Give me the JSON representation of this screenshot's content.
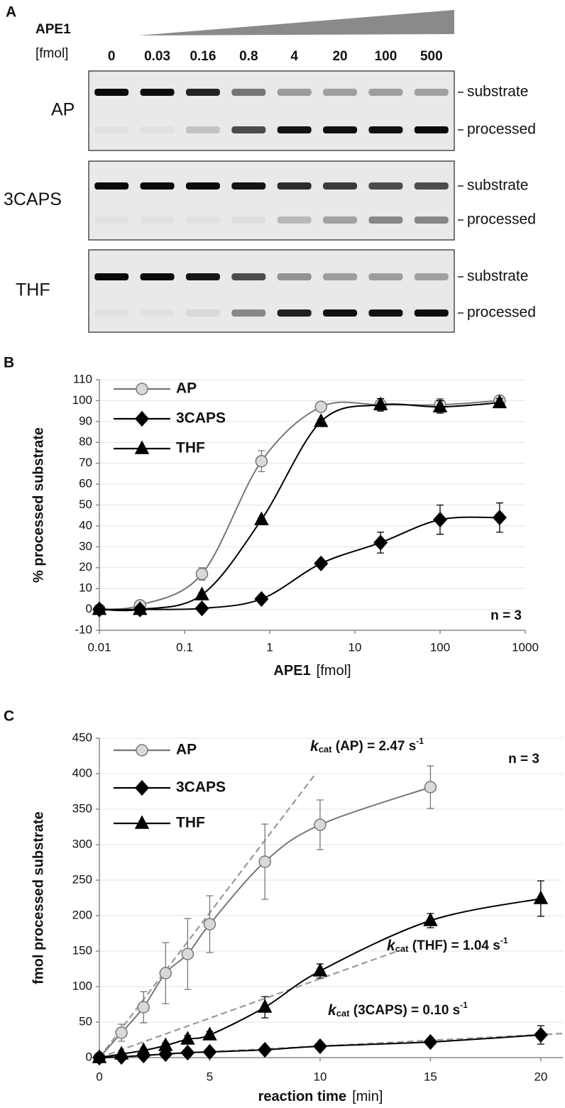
{
  "gel": {
    "panel_label": "A",
    "enzyme": "APE1",
    "unit": "[fmol]",
    "lanes": [
      "0",
      "0.03",
      "0.16",
      "0.8",
      "4",
      "20",
      "100",
      "500"
    ],
    "rows": [
      {
        "name": "AP",
        "bands": [
          "substrate",
          "processed"
        ]
      },
      {
        "name": "3CAPS",
        "bands": [
          "substrate",
          "processed"
        ]
      },
      {
        "name": "THF",
        "bands": [
          "substrate",
          "processed"
        ]
      }
    ]
  },
  "chart_data": [
    {
      "type": "line",
      "panel_label": "B",
      "x_label": "APE1",
      "x_unit": "[fmol]",
      "y_label": "% processed substrate",
      "annotation": "n = 3",
      "x": [
        0.01,
        0.03,
        0.16,
        0.8,
        4,
        20,
        100,
        500
      ],
      "xscale": "log",
      "xlim": [
        0.01,
        1000
      ],
      "xticks": [
        0.01,
        0.1,
        1,
        10,
        100,
        1000
      ],
      "ylim": [
        -10,
        110
      ],
      "yticks": [
        -10,
        0,
        10,
        20,
        30,
        40,
        50,
        60,
        70,
        80,
        90,
        100,
        110
      ],
      "grid": true,
      "series": [
        {
          "name": "AP",
          "color": "#777777",
          "marker": "circle",
          "marker_fill": "#d9d9d9",
          "values": [
            0,
            2,
            17,
            71,
            97,
            98,
            98,
            100
          ],
          "errors": [
            0,
            1,
            3,
            5,
            1,
            3,
            3,
            2
          ]
        },
        {
          "name": "3CAPS",
          "color": "#000000",
          "marker": "diamond",
          "marker_fill": "#000000",
          "values": [
            0,
            0,
            0.5,
            5,
            22,
            32,
            43,
            44
          ],
          "errors": [
            0,
            0,
            0.5,
            1,
            1,
            5,
            7,
            7
          ]
        },
        {
          "name": "THF",
          "color": "#000000",
          "marker": "triangle",
          "marker_fill": "#000000",
          "values": [
            0,
            0,
            7,
            43,
            90,
            98,
            97,
            99
          ],
          "errors": [
            0,
            0,
            1,
            1,
            1,
            3,
            3,
            2
          ]
        }
      ]
    },
    {
      "type": "line",
      "panel_label": "C",
      "x_label": "reaction time",
      "x_unit": "[min]",
      "y_label": "fmol processed substrate",
      "annotation": "n = 3",
      "x": [
        0,
        1,
        2,
        3,
        4,
        5,
        7.5,
        10,
        15,
        20
      ],
      "xlim": [
        0,
        21
      ],
      "xticks": [
        0,
        5,
        10,
        15,
        20
      ],
      "ylim": [
        0,
        450
      ],
      "yticks": [
        0,
        50,
        100,
        150,
        200,
        250,
        300,
        350,
        400,
        450
      ],
      "grid": true,
      "series": [
        {
          "name": "AP",
          "color": "#777777",
          "marker": "circle",
          "marker_fill": "#d9d9d9",
          "values": [
            0,
            35,
            71,
            119,
            146,
            188,
            276,
            328,
            381,
            null
          ],
          "errors": [
            0,
            12,
            22,
            43,
            50,
            40,
            53,
            35,
            30,
            null
          ]
        },
        {
          "name": "3CAPS",
          "color": "#000000",
          "marker": "diamond",
          "marker_fill": "#000000",
          "values": [
            0,
            1,
            3,
            5,
            7,
            8,
            11,
            16,
            22,
            32
          ],
          "errors": [
            0,
            1,
            1,
            2,
            2,
            2,
            3,
            3,
            4,
            13
          ]
        },
        {
          "name": "THF",
          "color": "#000000",
          "marker": "triangle",
          "marker_fill": "#000000",
          "values": [
            0,
            5,
            10,
            17,
            26,
            32,
            71,
            122,
            193,
            224
          ],
          "errors": [
            0,
            2,
            3,
            4,
            5,
            5,
            15,
            10,
            10,
            25
          ]
        }
      ],
      "fits": [
        {
          "color": "#999999",
          "x": [
            0,
            9.8
          ],
          "y": [
            0,
            400
          ],
          "k": "k",
          "sub": "cat",
          "text": " (AP) = 2.47 s",
          "sup": "-1"
        },
        {
          "color": "#999999",
          "x": [
            0,
            13.5
          ],
          "y": [
            0,
            150
          ],
          "k": "k",
          "sub": "cat",
          "text": " (THF) = 1.04 s",
          "sup": "-1"
        },
        {
          "color": "#999999",
          "x": [
            0,
            21
          ],
          "y": [
            0,
            34
          ],
          "k": "k",
          "sub": "cat",
          "text": " (3CAPS) = 0.10 s",
          "sup": "-1"
        }
      ]
    }
  ]
}
